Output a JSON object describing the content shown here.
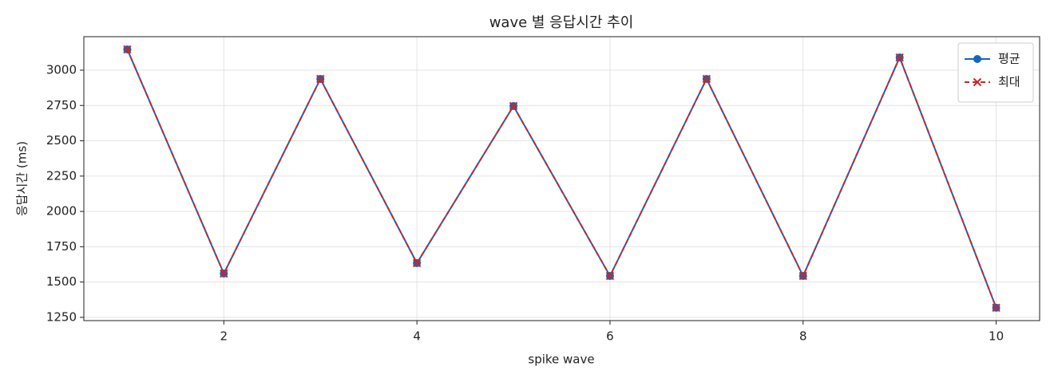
{
  "chart_data": {
    "type": "line",
    "title": "wave 별 응답시간 추이",
    "xlabel": "spike wave",
    "ylabel": "응답시간 (ms)",
    "x": [
      1,
      2,
      3,
      4,
      5,
      6,
      7,
      8,
      9,
      10
    ],
    "series": [
      {
        "name": "평균",
        "color": "#1565c0",
        "marker": "circle",
        "dash": false,
        "values": [
          3147,
          1560,
          2938,
          1634,
          2746,
          1543,
          2938,
          1543,
          3090,
          1318
        ]
      },
      {
        "name": "최대",
        "color": "#c62828",
        "marker": "x",
        "dash": true,
        "values": [
          3147,
          1560,
          2938,
          1634,
          2746,
          1543,
          2938,
          1543,
          3090,
          1318
        ]
      }
    ],
    "xlim": [
      0.55,
      10.45
    ],
    "xticks": [
      2,
      4,
      6,
      8,
      10
    ],
    "ylim": [
      1227,
      3237
    ],
    "yticks": [
      1250,
      1500,
      1750,
      2000,
      2250,
      2500,
      2750,
      3000
    ],
    "grid": true,
    "legend": "upper right"
  }
}
